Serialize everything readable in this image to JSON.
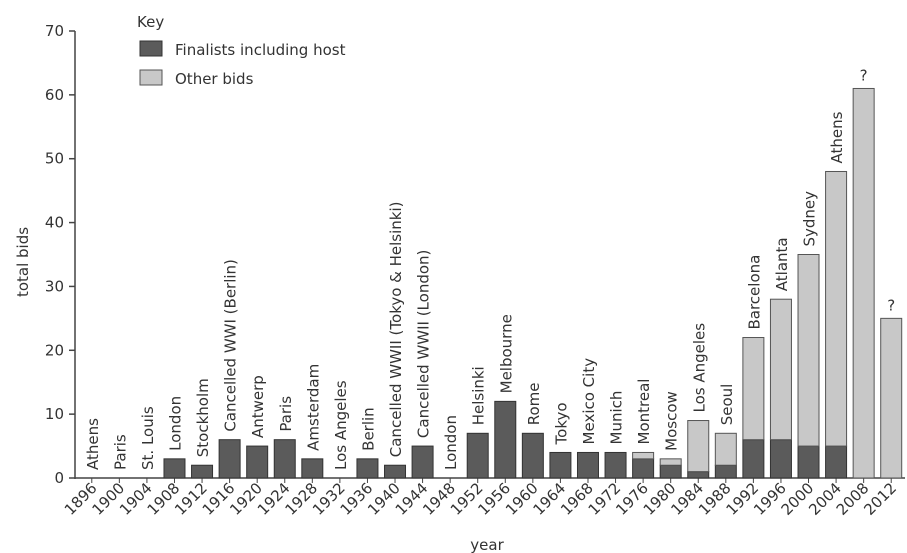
{
  "chart_data": {
    "type": "bar",
    "stacked": true,
    "xlabel": "year",
    "ylabel": "total bids",
    "ylim": [
      0,
      70
    ],
    "yticks": [
      0,
      10,
      20,
      30,
      40,
      50,
      60,
      70
    ],
    "grid": false,
    "legend": {
      "title": "Key",
      "position": "top-left",
      "entries": [
        {
          "name": "Finalists including host",
          "color": "#5b5b5b"
        },
        {
          "name": "Other bids",
          "color": "#c8c8c8"
        }
      ]
    },
    "categories": [
      "1896",
      "1900",
      "1904",
      "1908",
      "1912",
      "1916",
      "1920",
      "1924",
      "1928",
      "1932",
      "1936",
      "1940",
      "1944",
      "1948",
      "1952",
      "1956",
      "1960",
      "1964",
      "1968",
      "1972",
      "1976",
      "1980",
      "1984",
      "1988",
      "1992",
      "1996",
      "2000",
      "2004",
      "2008",
      "2012"
    ],
    "bar_labels": [
      "Athens",
      "Paris",
      "St. Louis",
      "London",
      "Stockholm",
      "Cancelled WWI (Berlin)",
      "Antwerp",
      "Paris",
      "Amsterdam",
      "Los Angeles",
      "Berlin",
      "Cancelled WWII (Tokyo & Helsinki)",
      "Cancelled WWII (London)",
      "London",
      "Helsinki",
      "Melbourne",
      "Rome",
      "Tokyo",
      "Mexico City",
      "Munich",
      "Montreal",
      "Moscow",
      "Los Angeles",
      "Seoul",
      "Barcelona",
      "Atlanta",
      "Sydney",
      "Athens",
      "?",
      "?"
    ],
    "series": [
      {
        "name": "Finalists including host",
        "values": [
          0,
          0,
          0,
          3,
          2,
          6,
          5,
          6,
          3,
          0,
          3,
          2,
          5,
          0,
          7,
          12,
          7,
          4,
          4,
          4,
          3,
          2,
          1,
          2,
          6,
          6,
          5,
          5,
          0,
          0
        ]
      },
      {
        "name": "Other bids",
        "values": [
          0,
          0,
          0,
          0,
          0,
          0,
          0,
          0,
          0,
          0,
          0,
          0,
          0,
          0,
          0,
          0,
          0,
          0,
          0,
          0,
          1,
          1,
          8,
          5,
          16,
          22,
          30,
          43,
          61,
          25
        ]
      }
    ]
  }
}
